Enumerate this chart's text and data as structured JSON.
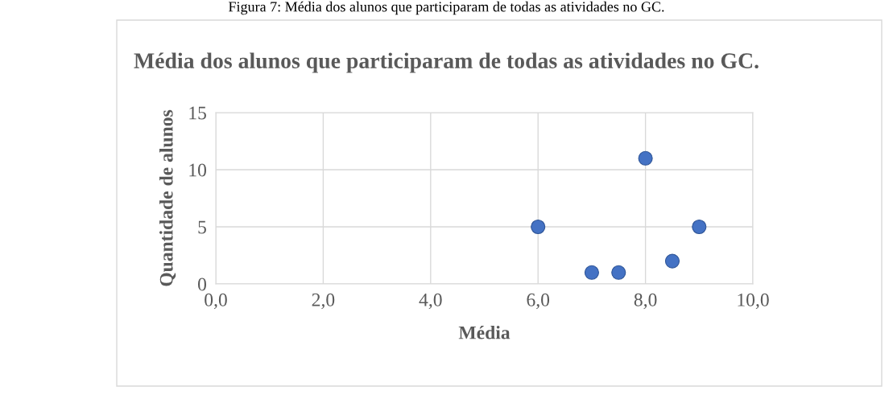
{
  "chart_data": {
    "type": "scatter",
    "title": "Média dos alunos que participaram de todas as atividades no GC.",
    "annotations": [
      "Figura 7: Média dos alunos que participaram de todas as atividades no GC."
    ],
    "xlabel": "Média",
    "ylabel": "Quantidade de alunos",
    "x": [
      6.0,
      7.0,
      7.5,
      8.0,
      8.5,
      9.0
    ],
    "values": [
      5,
      1,
      1,
      11,
      2,
      5
    ],
    "color": "#4472c4",
    "marker": "circle",
    "xlim": [
      0,
      10
    ],
    "xticks": [
      {
        "value": 0,
        "label": "0,0"
      },
      {
        "value": 2,
        "label": "2,0"
      },
      {
        "value": 4,
        "label": "4,0"
      },
      {
        "value": 6,
        "label": "6,0"
      },
      {
        "value": 8,
        "label": "8,0"
      },
      {
        "value": 10,
        "label": "10,0"
      }
    ],
    "ylim": [
      0,
      15
    ],
    "yticks": [
      0,
      5,
      10,
      15
    ],
    "grid": true
  }
}
